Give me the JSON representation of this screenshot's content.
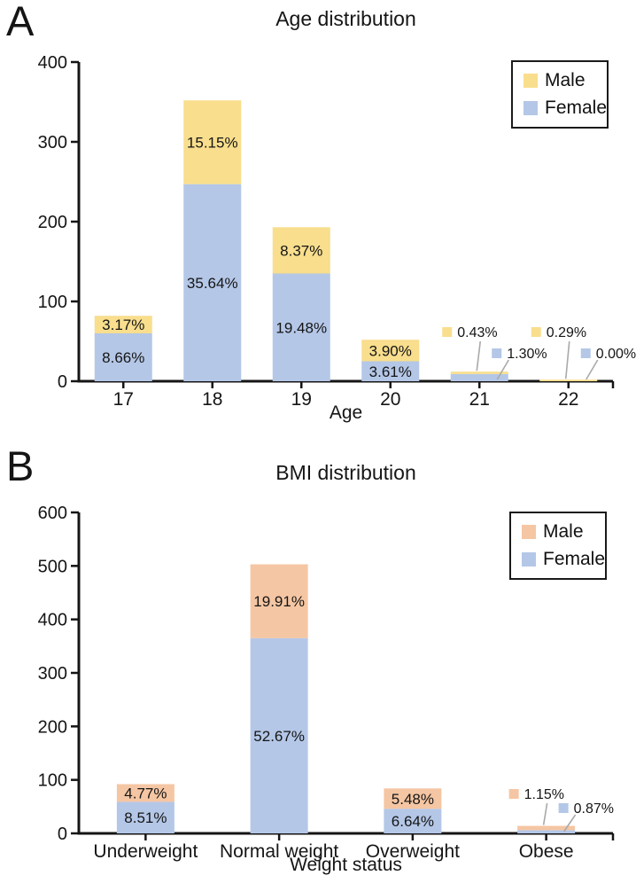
{
  "panels": [
    {
      "label": "A",
      "title": "Age distribution",
      "xlabel": "Age",
      "legend": [
        {
          "label": "Male",
          "color": "#F8DE8D"
        },
        {
          "label": "Female",
          "color": "#B4C7E7"
        }
      ]
    },
    {
      "label": "B",
      "title": "BMI distribution",
      "xlabel": "Weight status",
      "legend": [
        {
          "label": "Male",
          "color": "#F5C6A3"
        },
        {
          "label": "Female",
          "color": "#B4C7E7"
        }
      ]
    }
  ],
  "chart_data": [
    {
      "type": "bar",
      "stacked": true,
      "panel": "A",
      "title": "Age distribution",
      "xlabel": "Age",
      "ylabel": "",
      "categories": [
        "17",
        "18",
        "19",
        "20",
        "21",
        "22"
      ],
      "series": [
        {
          "name": "Female",
          "color": "#B4C7E7",
          "values": [
            60,
            247,
            135,
            25,
            9,
            0
          ],
          "percent_labels": [
            "8.66%",
            "35.64%",
            "19.48%",
            "3.61%",
            "1.30%",
            "0.00%"
          ]
        },
        {
          "name": "Male",
          "color": "#F8DE8D",
          "values": [
            22,
            105,
            58,
            27,
            3,
            2
          ],
          "percent_labels": [
            "3.17%",
            "15.15%",
            "8.37%",
            "3.90%",
            "0.43%",
            "0.29%"
          ]
        }
      ],
      "ylim": [
        0,
        400
      ],
      "yticks": [
        0,
        100,
        200,
        300,
        400
      ],
      "grid": false,
      "legend_position": "top-right",
      "legend_order": [
        "Male",
        "Female"
      ],
      "callout_note": "Tiny segments at ages 21 and 22 are labeled with leader lines"
    },
    {
      "type": "bar",
      "stacked": true,
      "panel": "B",
      "title": "BMI distribution",
      "xlabel": "Weight status",
      "ylabel": "",
      "categories": [
        "Underweight",
        "Normal weight",
        "Overweight",
        "Obese"
      ],
      "series": [
        {
          "name": "Female",
          "color": "#B4C7E7",
          "values": [
            59,
            365,
            46,
            6
          ],
          "percent_labels": [
            "8.51%",
            "52.67%",
            "6.64%",
            "0.87%"
          ]
        },
        {
          "name": "Male",
          "color": "#F5C6A3",
          "values": [
            33,
            138,
            38,
            8
          ],
          "percent_labels": [
            "4.77%",
            "19.91%",
            "5.48%",
            "1.15%"
          ]
        }
      ],
      "ylim": [
        0,
        600
      ],
      "yticks": [
        0,
        100,
        200,
        300,
        400,
        500,
        600
      ],
      "grid": false,
      "legend_position": "top-right",
      "legend_order": [
        "Male",
        "Female"
      ],
      "callout_note": "Tiny segments for Obese are labeled with leader lines"
    }
  ]
}
